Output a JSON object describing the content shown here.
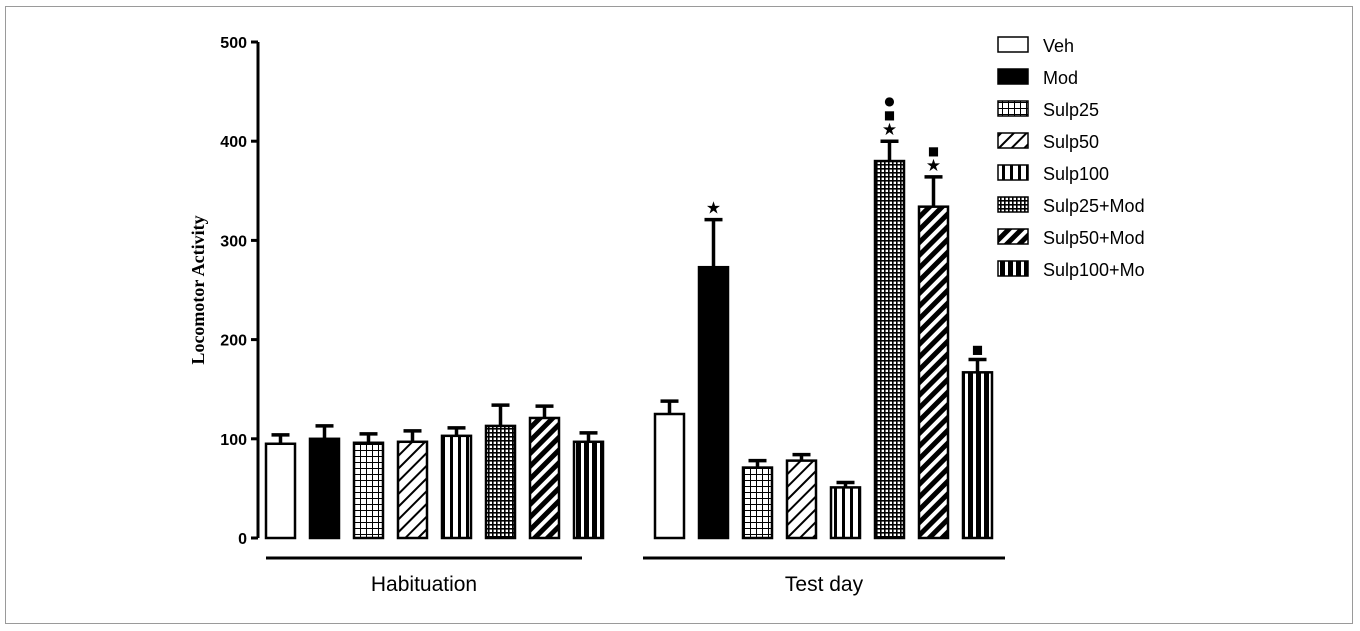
{
  "chart_data": {
    "type": "bar",
    "ylabel": "Locomotor Activity",
    "xlabel": "",
    "ylim": [
      0,
      500
    ],
    "yticks": [
      "0",
      "100",
      "200",
      "300",
      "400",
      "500"
    ],
    "grid": false,
    "legend_position": "top-right",
    "categories": [
      "Habituation",
      "Test day"
    ],
    "series": [
      {
        "name": "Veh",
        "pattern": "open",
        "values": [
          95,
          125
        ],
        "errors": [
          9,
          13
        ]
      },
      {
        "name": "Mod",
        "pattern": "solid",
        "values": [
          100,
          273
        ],
        "errors": [
          13,
          48
        ]
      },
      {
        "name": "Sulp25",
        "pattern": "grid",
        "values": [
          96,
          71
        ],
        "errors": [
          9,
          7
        ]
      },
      {
        "name": "Sulp50",
        "pattern": "diag",
        "values": [
          97,
          78
        ],
        "errors": [
          11,
          6
        ]
      },
      {
        "name": "Sulp100",
        "pattern": "vert",
        "values": [
          103,
          51
        ],
        "errors": [
          8,
          5
        ]
      },
      {
        "name": "Sulp25+Mod",
        "pattern": "dense-grid",
        "values": [
          113,
          380
        ],
        "errors": [
          21,
          20
        ]
      },
      {
        "name": "Sulp50+Mod",
        "pattern": "thick-diag",
        "values": [
          121,
          334
        ],
        "errors": [
          12,
          30
        ]
      },
      {
        "name": "Sulp100+Mo",
        "pattern": "thick-vert",
        "values": [
          97,
          167
        ],
        "errors": [
          9,
          13
        ]
      }
    ],
    "annotations": [
      {
        "category": "Test day",
        "series": "Mod",
        "symbols": [
          "★"
        ]
      },
      {
        "category": "Test day",
        "series": "Sulp25+Mod",
        "symbols": [
          "★",
          "■",
          "●"
        ]
      },
      {
        "category": "Test day",
        "series": "Sulp50+Mod",
        "symbols": [
          "★",
          "■"
        ]
      },
      {
        "category": "Test day",
        "series": "Sulp100+Mo",
        "symbols": [
          "■"
        ]
      }
    ]
  }
}
